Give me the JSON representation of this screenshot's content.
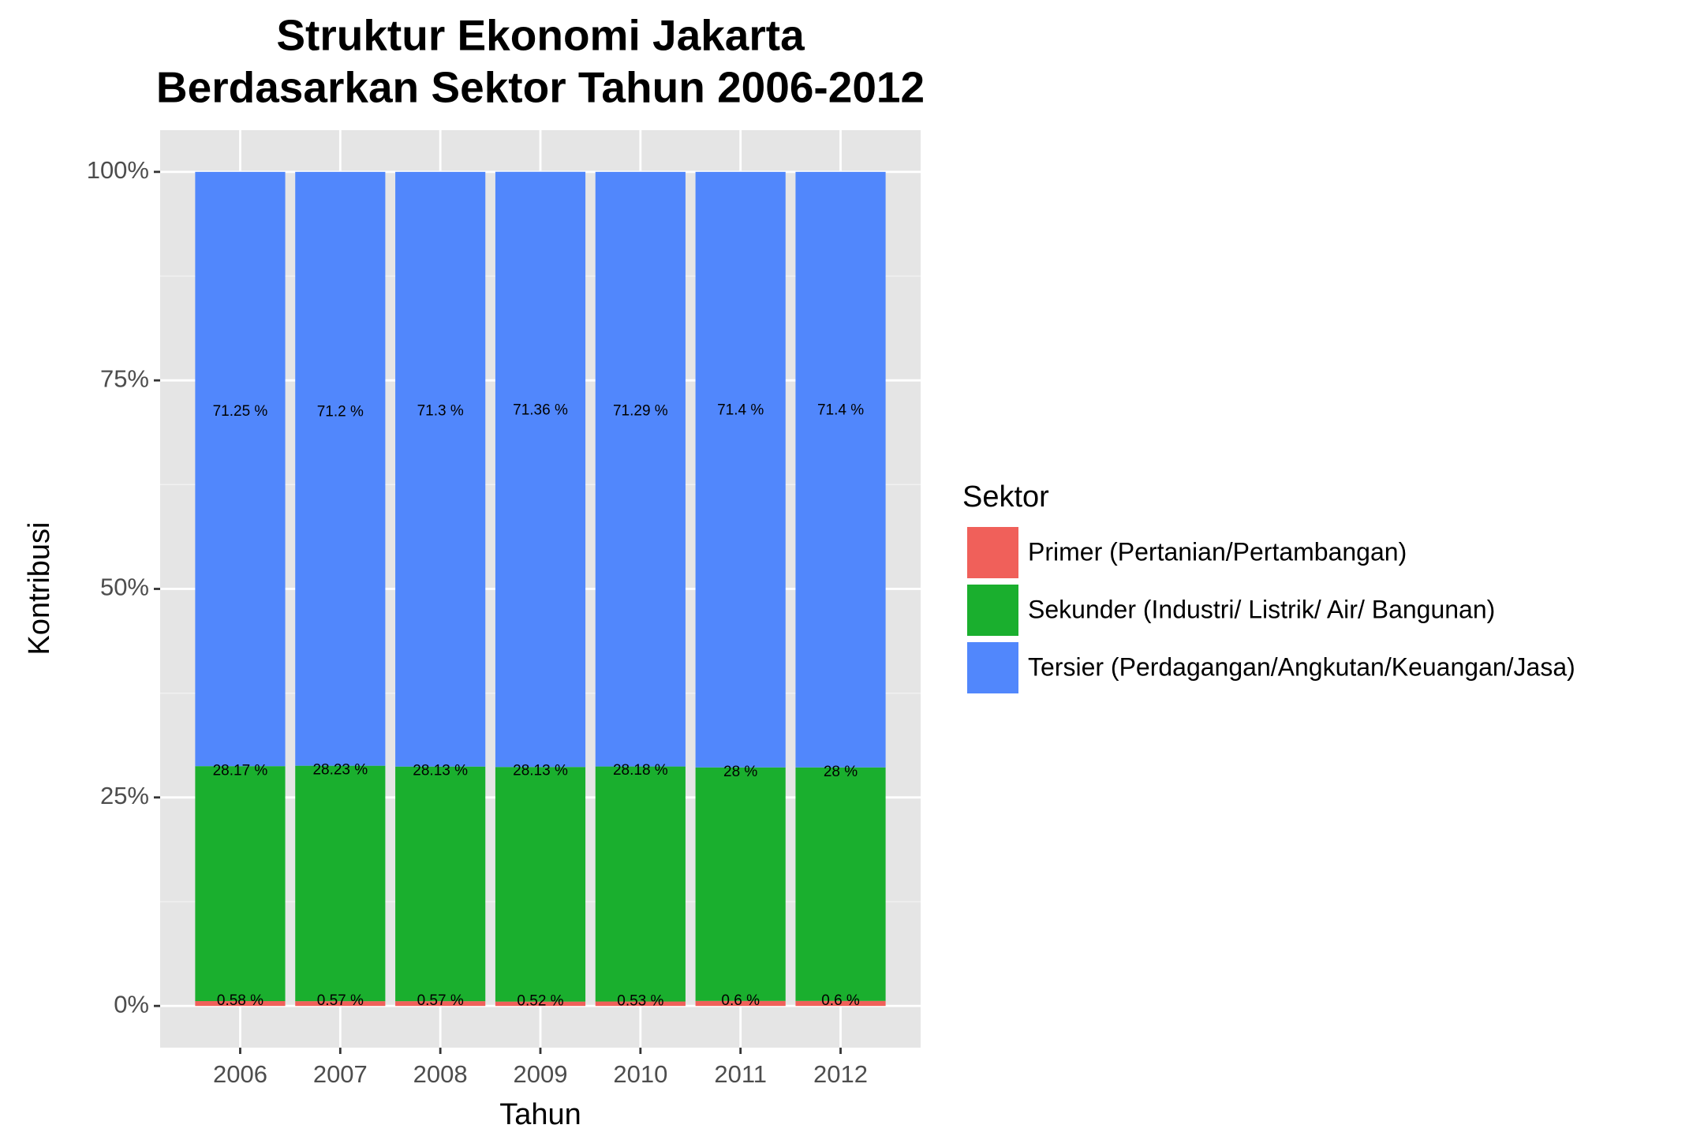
{
  "chart_data": {
    "type": "stacked_bar",
    "title": [
      "Struktur Ekonomi Jakarta",
      "Berdasarkan Sektor Tahun 2006-2012"
    ],
    "x_label": "Tahun",
    "y_label": "Kontribusi",
    "categories": [
      "2006",
      "2007",
      "2008",
      "2009",
      "2010",
      "2011",
      "2012"
    ],
    "series": [
      {
        "name": "Primer (Pertanian/Pertambangan)",
        "color": "#f0605a",
        "values": [
          0.58,
          0.57,
          0.57,
          0.52,
          0.53,
          0.6,
          0.6
        ],
        "value_labels": [
          "0.58 %",
          "0.57 %",
          "0.57 %",
          "0.52 %",
          "0.53 %",
          "0.6 %",
          "0.6 %"
        ]
      },
      {
        "name": "Sekunder (Industri/ Listrik/ Air/ Bangunan)",
        "color": "#1aaf2e",
        "values": [
          28.17,
          28.23,
          28.13,
          28.13,
          28.18,
          28,
          28
        ],
        "value_labels": [
          "28.17 %",
          "28.23 %",
          "28.13 %",
          "28.13 %",
          "28.18 %",
          "28 %",
          "28 %"
        ]
      },
      {
        "name": "Tersier (Perdagangan/Angkutan/Keuangan/Jasa)",
        "color": "#5187fc",
        "values": [
          71.25,
          71.2,
          71.3,
          71.36,
          71.29,
          71.4,
          71.4
        ],
        "value_labels": [
          "71.25 %",
          "71.2 %",
          "71.3 %",
          "71.36 %",
          "71.29 %",
          "71.4 %",
          "71.4 %"
        ]
      }
    ],
    "legend_title": "Sektor",
    "legend_position": "right",
    "ylim": [
      -5,
      105
    ],
    "yticks": [
      {
        "value": 0,
        "label": "0%"
      },
      {
        "value": 25,
        "label": "25%"
      },
      {
        "value": 50,
        "label": "50%"
      },
      {
        "value": 75,
        "label": "75%"
      },
      {
        "value": 100,
        "label": "100%"
      }
    ],
    "grid": true
  }
}
